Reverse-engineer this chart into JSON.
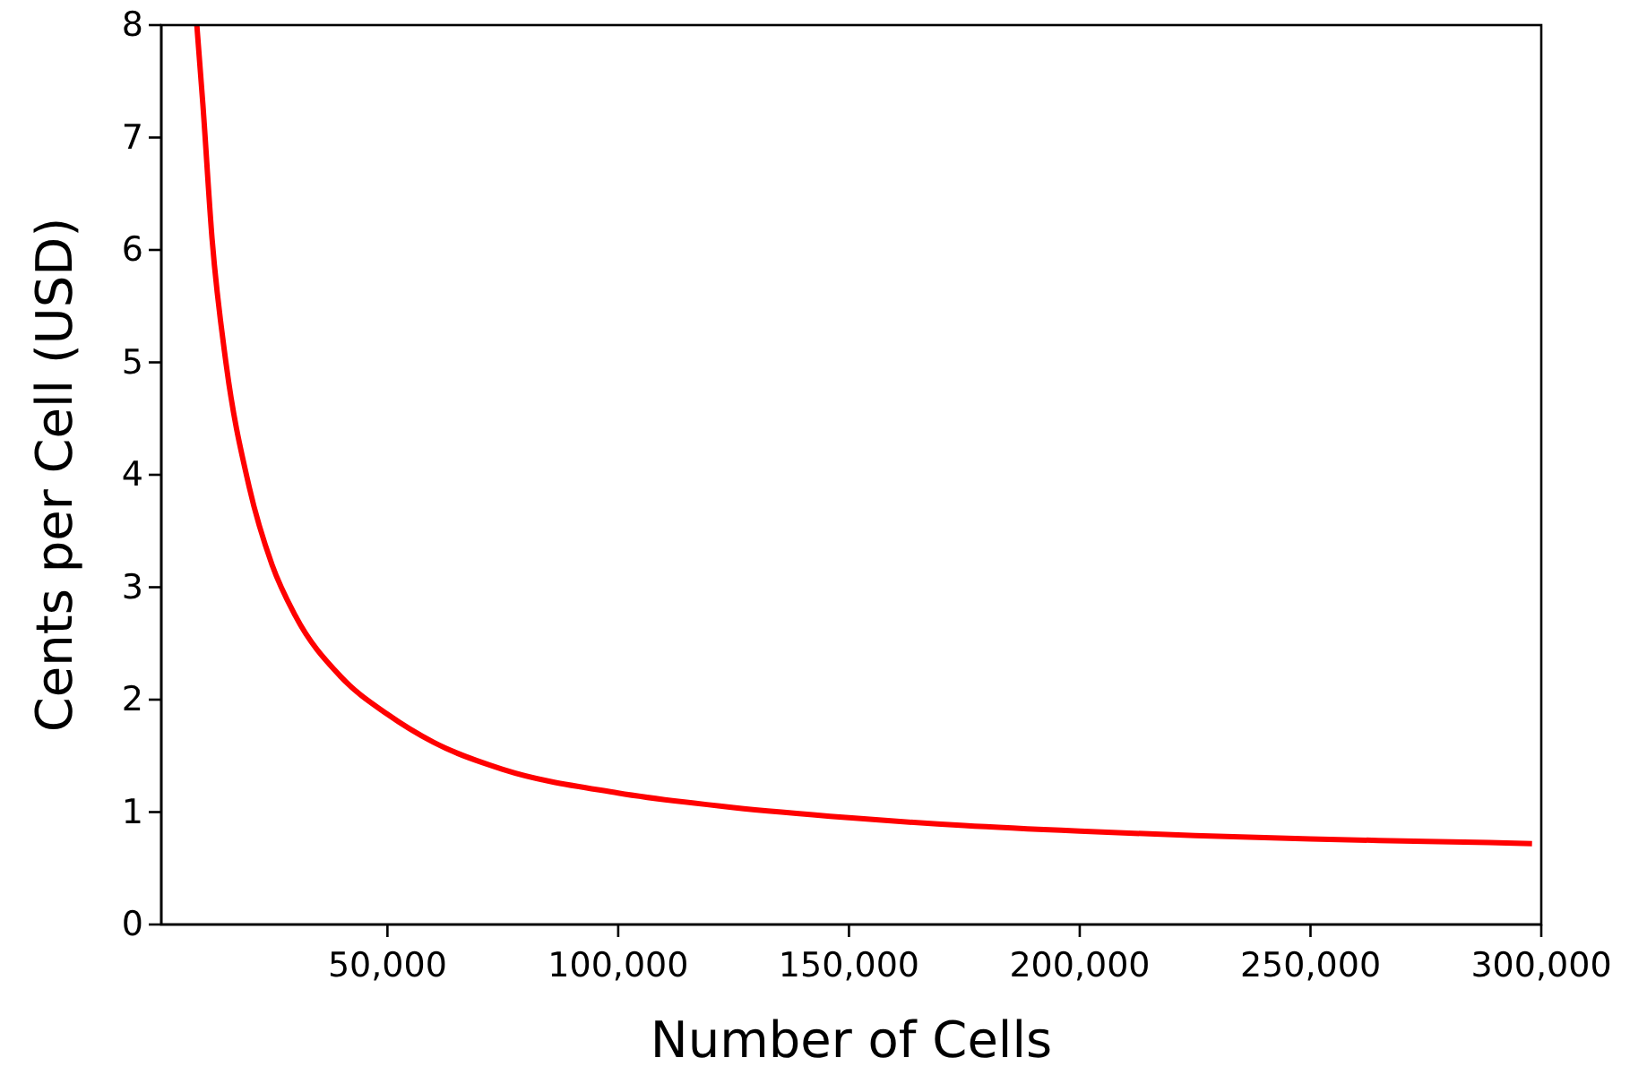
{
  "chart_data": {
    "type": "line",
    "xlabel": "Number of Cells",
    "ylabel": "Cents per Cell (USD)",
    "x": [
      8700,
      10000,
      12000,
      15000,
      20000,
      25000,
      30000,
      40000,
      50000,
      60000,
      75000,
      100000,
      125000,
      150000,
      175000,
      200000,
      225000,
      250000,
      275000,
      298000
    ],
    "series": [
      {
        "color": "#ff0000",
        "values": [
          8.0,
          7.3,
          6.1,
          5.0,
          3.9,
          3.2,
          2.75,
          2.2,
          1.87,
          1.62,
          1.38,
          1.17,
          1.04,
          0.95,
          0.88,
          0.83,
          0.79,
          0.76,
          0.74,
          0.72
        ]
      }
    ],
    "xlim": [
      1000,
      300000
    ],
    "ylim": [
      0,
      8
    ],
    "xticks": [
      {
        "value": 50000,
        "label": "50,000"
      },
      {
        "value": 100000,
        "label": "100,000"
      },
      {
        "value": 150000,
        "label": "150,000"
      },
      {
        "value": 200000,
        "label": "200,000"
      },
      {
        "value": 250000,
        "label": "250,000"
      },
      {
        "value": 300000,
        "label": "300,000"
      }
    ],
    "yticks": [
      0,
      1,
      2,
      3,
      4,
      5,
      6,
      7,
      8
    ],
    "grid": false,
    "marker": "none",
    "line_style": "solid"
  }
}
